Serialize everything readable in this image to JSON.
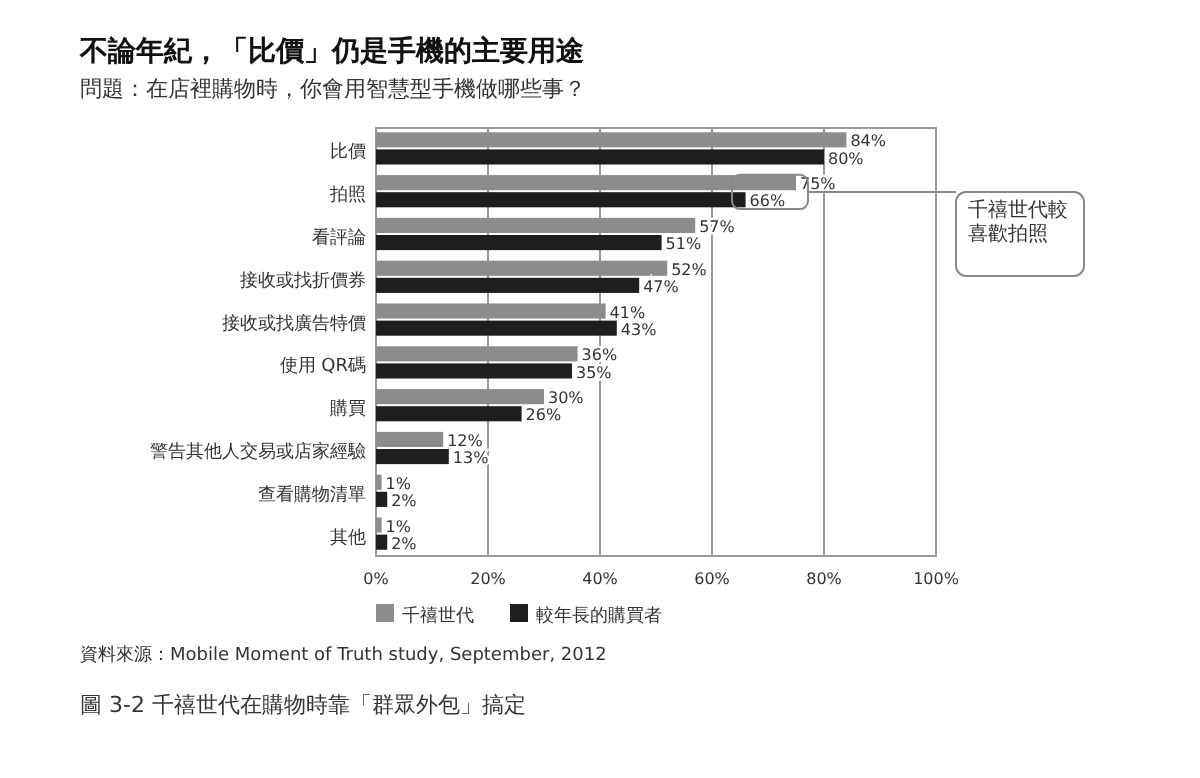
{
  "chart_data": {
    "type": "bar",
    "orientation": "horizontal",
    "title": "不論年紀，「比價」仍是手機的主要用途",
    "subtitle": "問題：在店裡購物時，你會用智慧型手機做哪些事？",
    "categories": [
      "比價",
      "拍照",
      "看評論",
      "接收或找折價券",
      "接收或找廣告特價",
      "使用 QR碼",
      "購買",
      "警告其他人交易或店家經驗",
      "查看購物清單",
      "其他"
    ],
    "series": [
      {
        "name": "千禧世代",
        "color": "#8c8c8c",
        "values": [
          84,
          75,
          57,
          52,
          41,
          36,
          30,
          12,
          1,
          1
        ],
        "value_labels": [
          "84%",
          "75%",
          "57%",
          "52%",
          "41%",
          "36%",
          "30%",
          "12%",
          "1%",
          "1%"
        ]
      },
      {
        "name": "較年長的購買者",
        "color": "#1e1e1e",
        "values": [
          80,
          66,
          51,
          47,
          43,
          35,
          26,
          13,
          2,
          2
        ],
        "value_labels": [
          "80%",
          "66%",
          "51%",
          "47%",
          "43%",
          "35%",
          "26%",
          "13%",
          "2%",
          "2%"
        ]
      }
    ],
    "xlim": [
      0,
      100
    ],
    "xticks": [
      {
        "value": 0,
        "label": "0%"
      },
      {
        "value": 20,
        "label": "20%"
      },
      {
        "value": 40,
        "label": "40%"
      },
      {
        "value": 60,
        "label": "60%"
      },
      {
        "value": 80,
        "label": "80%"
      },
      {
        "value": 100,
        "label": "100%"
      }
    ],
    "grid": "x",
    "legend": "bottom",
    "annotations": [
      "千禧世代較喜歡拍照",
      "資料來源：Mobile Moment of Truth study, September, 2012",
      "圖 3-2 千禧世代在購物時靠「群眾外包」搞定"
    ]
  }
}
